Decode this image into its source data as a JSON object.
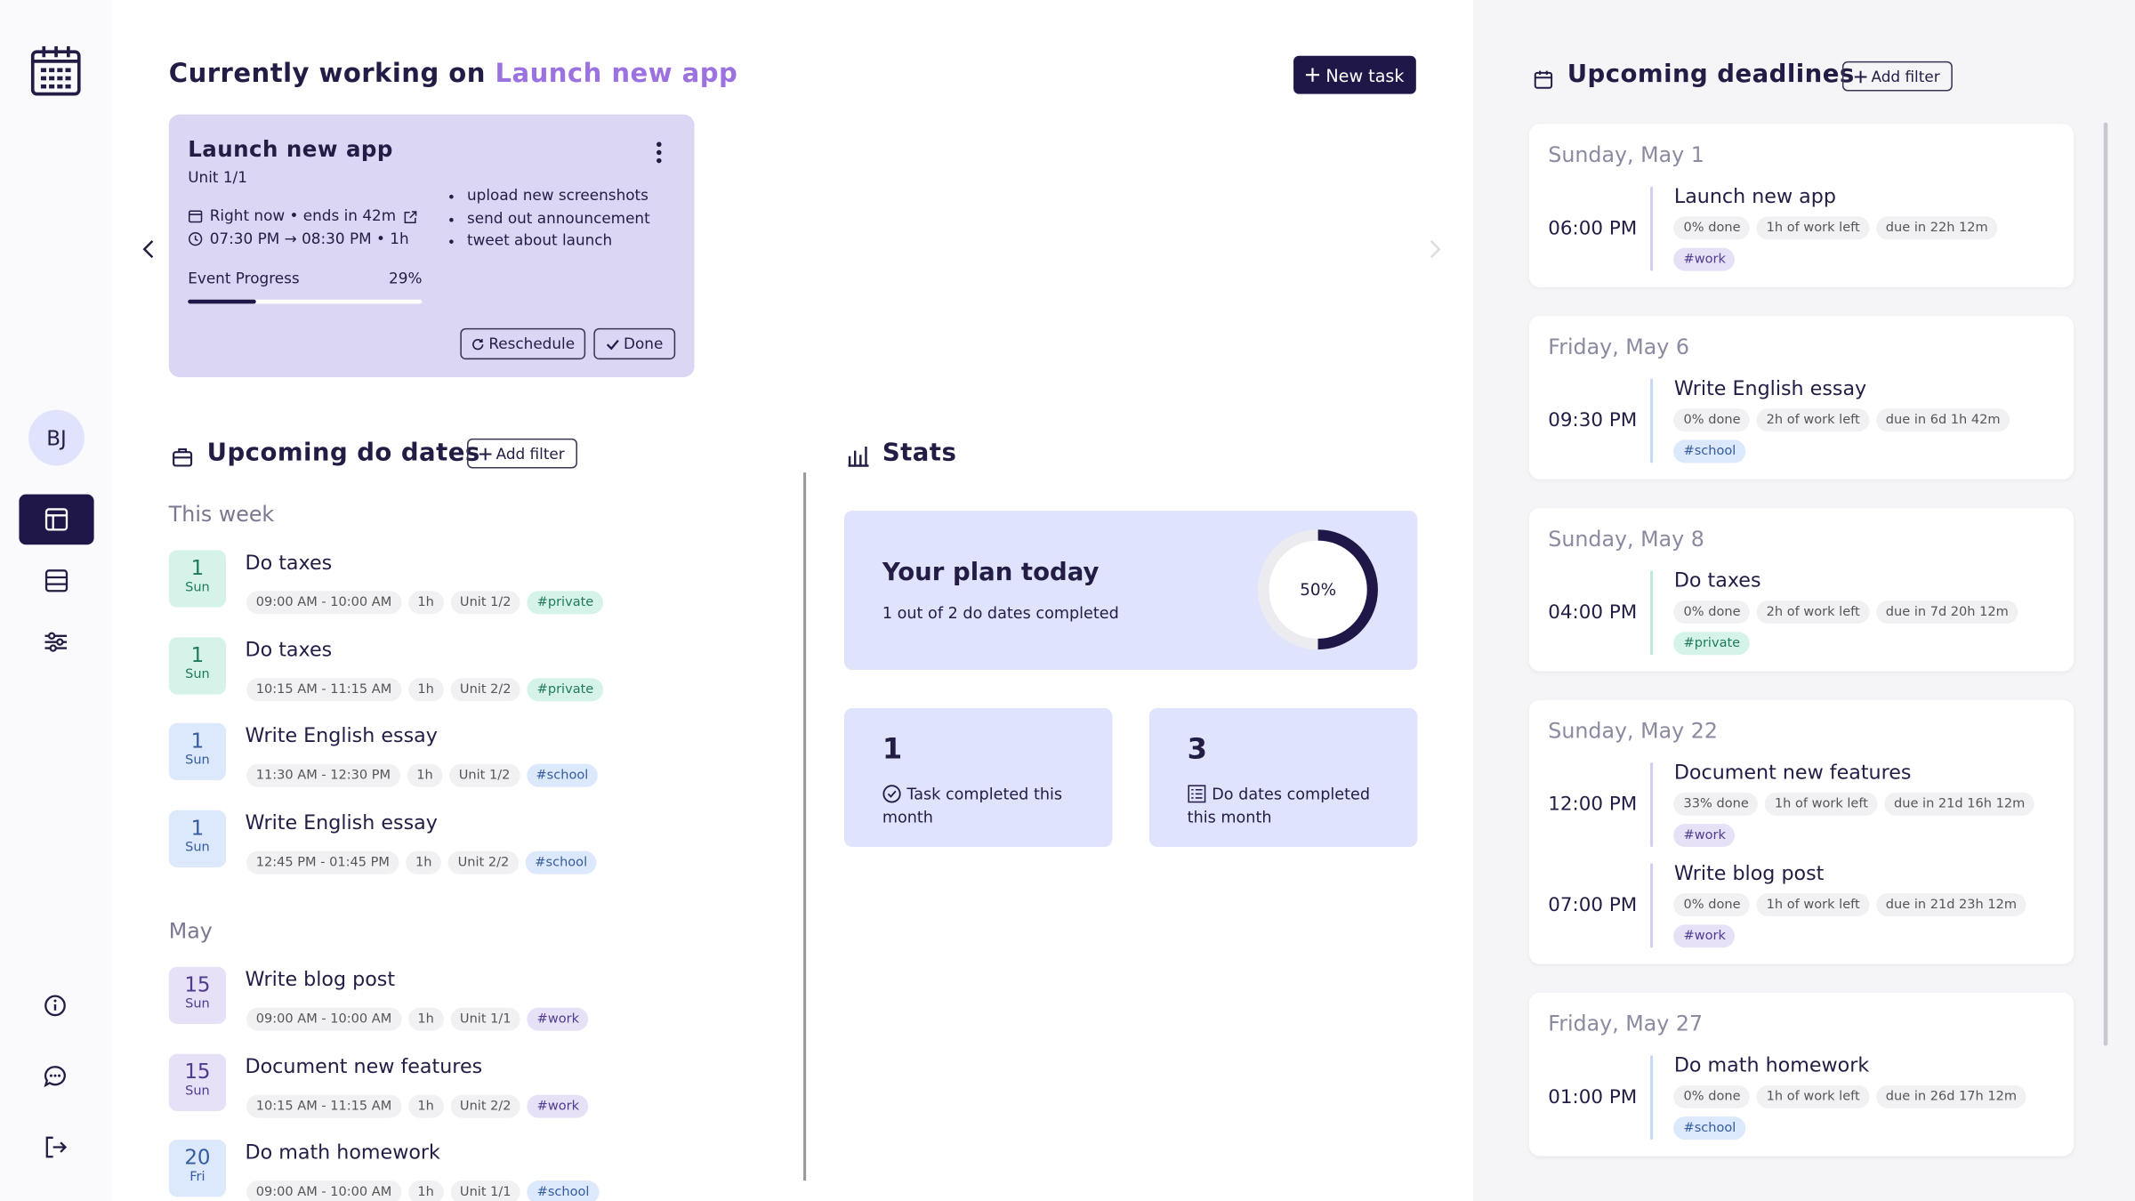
{
  "sidebar": {
    "avatar": "BJ"
  },
  "header": {
    "prefix": "Currently working on",
    "highlight": "Launch new app",
    "new_task": "New task"
  },
  "current_task": {
    "title": "Launch new app",
    "unit": "Unit 1/1",
    "when": "Right now • ends in 42m",
    "time": "07:30 PM → 08:30 PM • 1h",
    "subtasks": [
      "upload new screenshots",
      "send out announcement",
      "tweet about launch"
    ],
    "progress_label": "Event Progress",
    "progress": 29,
    "progress_text": "29%",
    "reschedule": "Reschedule",
    "done": "Done"
  },
  "do_dates": {
    "title": "Upcoming do dates",
    "add_filter": "Add filter",
    "groups": [
      {
        "label": "This week",
        "items": [
          {
            "day": "1",
            "weekday": "Sun",
            "title": "Do taxes",
            "time": "09:00 AM - 10:00 AM",
            "duration": "1h",
            "unit": "Unit 1/2",
            "tag": "#private",
            "tone": "green"
          },
          {
            "day": "1",
            "weekday": "Sun",
            "title": "Do taxes",
            "time": "10:15 AM - 11:15 AM",
            "duration": "1h",
            "unit": "Unit 2/2",
            "tag": "#private",
            "tone": "green"
          },
          {
            "day": "1",
            "weekday": "Sun",
            "title": "Write English essay",
            "time": "11:30 AM - 12:30 PM",
            "duration": "1h",
            "unit": "Unit 1/2",
            "tag": "#school",
            "tone": "blue"
          },
          {
            "day": "1",
            "weekday": "Sun",
            "title": "Write English essay",
            "time": "12:45 PM - 01:45 PM",
            "duration": "1h",
            "unit": "Unit 2/2",
            "tag": "#school",
            "tone": "blue"
          }
        ]
      },
      {
        "label": "May",
        "items": [
          {
            "day": "15",
            "weekday": "Sun",
            "title": "Write blog post",
            "time": "09:00 AM - 10:00 AM",
            "duration": "1h",
            "unit": "Unit 1/1",
            "tag": "#work",
            "tone": "purple"
          },
          {
            "day": "15",
            "weekday": "Sun",
            "title": "Document new features",
            "time": "10:15 AM - 11:15 AM",
            "duration": "1h",
            "unit": "Unit 2/2",
            "tag": "#work",
            "tone": "purple"
          },
          {
            "day": "20",
            "weekday": "Fri",
            "title": "Do math homework",
            "time": "09:00 AM - 10:00 AM",
            "duration": "1h",
            "unit": "Unit 1/1",
            "tag": "#school",
            "tone": "blue"
          }
        ]
      }
    ]
  },
  "stats": {
    "title": "Stats",
    "plan": {
      "title": "Your plan today",
      "subtitle": "1 out of 2 do dates completed",
      "percent": 50,
      "percent_text": "50%"
    },
    "cards": [
      {
        "value": 1,
        "label": "Task completed this month"
      },
      {
        "value": 3,
        "label": "Do dates completed this month"
      }
    ]
  },
  "deadlines": {
    "title": "Upcoming deadlines",
    "add_filter": "Add filter",
    "days": [
      {
        "date": "Sunday, May 1",
        "entries": [
          {
            "time": "06:00 PM",
            "title": "Launch new app",
            "done": "0% done",
            "left": "1h of work left",
            "due": "due in 22h 12m",
            "tag": "#work",
            "tone": "purple"
          }
        ]
      },
      {
        "date": "Friday, May 6",
        "entries": [
          {
            "time": "09:30 PM",
            "title": "Write English essay",
            "done": "0% done",
            "left": "2h of work left",
            "due": "due in 6d 1h 42m",
            "tag": "#school",
            "tone": "blue"
          }
        ]
      },
      {
        "date": "Sunday, May 8",
        "entries": [
          {
            "time": "04:00 PM",
            "title": "Do taxes",
            "done": "0% done",
            "left": "2h of work left",
            "due": "due in 7d 20h 12m",
            "tag": "#private",
            "tone": "green"
          }
        ]
      },
      {
        "date": "Sunday, May 22",
        "entries": [
          {
            "time": "12:00 PM",
            "title": "Document new features",
            "done": "33% done",
            "left": "1h of work left",
            "due": "due in 21d 16h 12m",
            "tag": "#work",
            "tone": "purple"
          },
          {
            "time": "07:00 PM",
            "title": "Write blog post",
            "done": "0% done",
            "left": "1h of work left",
            "due": "due in 21d 23h 12m",
            "tag": "#work",
            "tone": "purple"
          }
        ]
      },
      {
        "date": "Friday, May 27",
        "entries": [
          {
            "time": "01:00 PM",
            "title": "Do math homework",
            "done": "0% done",
            "left": "1h of work left",
            "due": "due in 26d 17h 12m",
            "tag": "#school",
            "tone": "blue"
          }
        ]
      }
    ]
  }
}
